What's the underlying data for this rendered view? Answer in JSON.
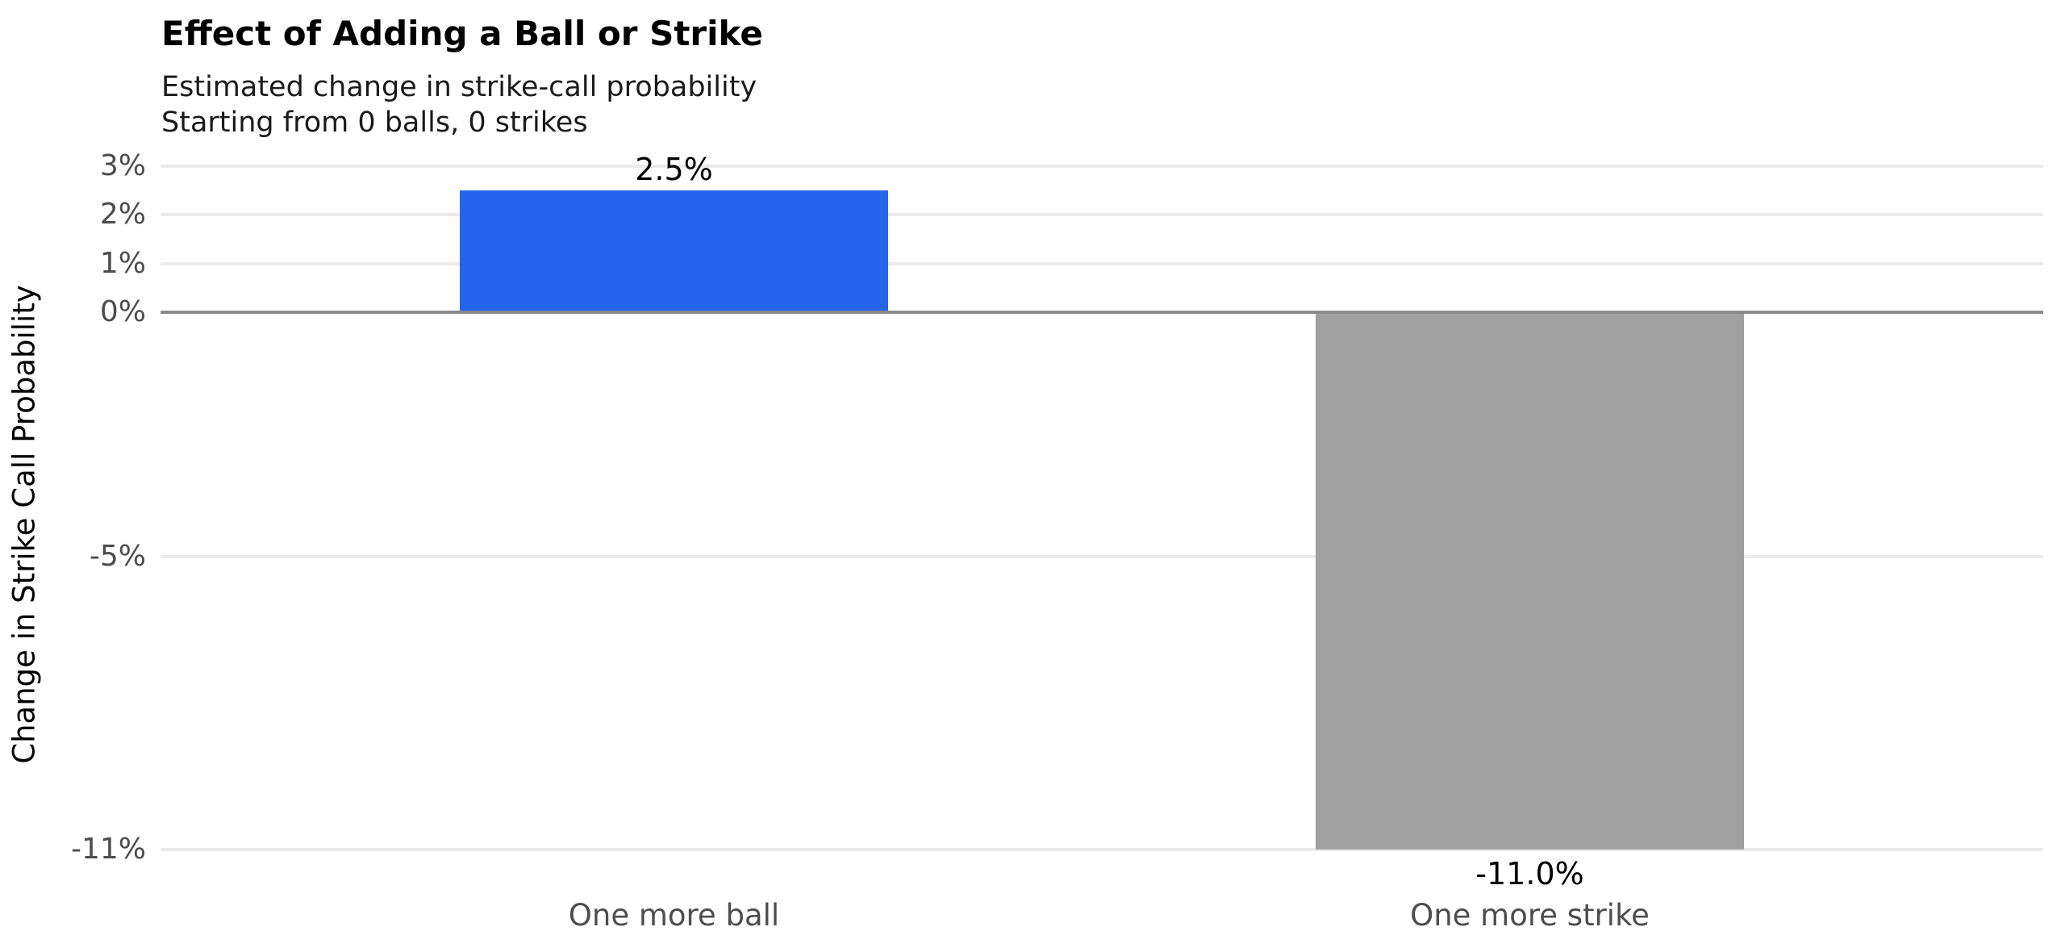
{
  "header": {
    "title": "Effect of Adding a Ball or Strike",
    "subtitle_line1": "Estimated change in strike-call probability",
    "subtitle_line2": "Starting from 0 balls, 0 strikes"
  },
  "colors": {
    "positive_bar": "#2664EB",
    "negative_bar": "#A0A0A0",
    "gridline": "#EBEBEB",
    "zero_line": "#8A8A8A",
    "axis_text": "#4D4D4D",
    "label_text": "#000000",
    "background": "#FFFFFF"
  },
  "chart_data": {
    "type": "bar",
    "title": "Effect of Adding a Ball or Strike",
    "subtitle": [
      "Estimated change in strike-call probability",
      "Starting from 0 balls, 0 strikes"
    ],
    "xlabel": "",
    "ylabel": "Change in Strike Call Probability",
    "categories": [
      "One more ball",
      "One more strike"
    ],
    "values": [
      2.5,
      -11.0
    ],
    "bar_labels": [
      "2.5%",
      "-11.0%"
    ],
    "bar_colors": [
      "#2664EB",
      "#A0A0A0"
    ],
    "yticks": [
      {
        "value": 3,
        "label": "3%"
      },
      {
        "value": 2,
        "label": "2%"
      },
      {
        "value": 1,
        "label": "1%"
      },
      {
        "value": 0,
        "label": "0%"
      },
      {
        "value": -5,
        "label": "-5%"
      },
      {
        "value": -11,
        "label": "-11%"
      }
    ],
    "ylim": [
      -11.7,
      3.2
    ],
    "grid": "horizontal-at-ticks-only",
    "legend": "none",
    "zero_line": true,
    "orientation": "vertical"
  }
}
